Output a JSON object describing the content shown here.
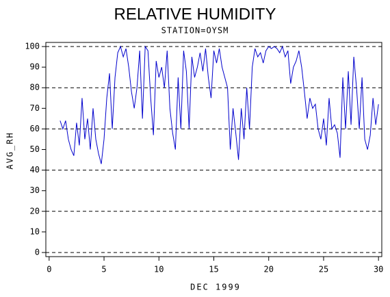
{
  "chart_data": {
    "type": "line",
    "title": "RELATIVE HUMIDITY",
    "subtitle": "STATION=OYSM",
    "x_label": "DEC 1999",
    "y_label": "AVG_RH",
    "xlim": [
      -0.3,
      30.3
    ],
    "xticks": [
      0,
      5,
      10,
      15,
      20,
      25,
      30
    ],
    "ylim": [
      -2,
      102
    ],
    "yticks": [
      0,
      10,
      20,
      30,
      40,
      50,
      60,
      70,
      80,
      90,
      100
    ],
    "ygrid": [
      0,
      20,
      40,
      60,
      80,
      100
    ],
    "grid_style": "dashed",
    "x": [
      1,
      1.25,
      1.5,
      1.75,
      2,
      2.25,
      2.5,
      2.75,
      3,
      3.25,
      3.5,
      3.75,
      4,
      4.25,
      4.5,
      4.75,
      5,
      5.25,
      5.5,
      5.75,
      6,
      6.25,
      6.5,
      6.75,
      7,
      7.25,
      7.5,
      7.75,
      8,
      8.25,
      8.5,
      8.75,
      9,
      9.25,
      9.5,
      9.75,
      10,
      10.25,
      10.5,
      10.75,
      11,
      11.25,
      11.5,
      11.75,
      12,
      12.25,
      12.5,
      12.75,
      13,
      13.25,
      13.5,
      13.75,
      14,
      14.25,
      14.5,
      14.75,
      15,
      15.25,
      15.5,
      15.75,
      16,
      16.25,
      16.5,
      16.75,
      17,
      17.25,
      17.5,
      17.75,
      18,
      18.25,
      18.5,
      18.75,
      19,
      19.25,
      19.5,
      19.75,
      20,
      20.25,
      20.5,
      20.75,
      21,
      21.25,
      21.5,
      21.75,
      22,
      22.25,
      22.5,
      22.75,
      23,
      23.25,
      23.5,
      23.75,
      24,
      24.25,
      24.5,
      24.75,
      25,
      25.25,
      25.5,
      25.75,
      26,
      26.25,
      26.5,
      26.75,
      27,
      27.25,
      27.5,
      27.75,
      28,
      28.25,
      28.5,
      28.75,
      29,
      29.25,
      29.5,
      29.75,
      30
    ],
    "series": [
      {
        "name": "AVG_RH",
        "color": "#0000cc",
        "values": [
          64,
          60,
          64,
          55,
          50,
          47,
          63,
          52,
          75,
          55,
          65,
          50,
          70,
          55,
          48,
          43,
          55,
          75,
          87,
          60,
          85,
          97,
          100,
          95,
          99,
          90,
          78,
          70,
          80,
          98,
          65,
          100,
          98,
          75,
          57,
          93,
          85,
          90,
          80,
          98,
          70,
          58,
          50,
          85,
          60,
          98,
          88,
          60,
          95,
          85,
          90,
          97,
          88,
          99,
          85,
          75,
          98,
          92,
          99,
          90,
          85,
          80,
          50,
          70,
          58,
          45,
          70,
          55,
          80,
          60,
          90,
          99,
          95,
          97,
          92,
          98,
          100,
          99,
          100,
          99,
          97,
          100,
          95,
          98,
          82,
          90,
          93,
          98,
          90,
          78,
          65,
          75,
          70,
          72,
          60,
          55,
          65,
          52,
          75,
          60,
          62,
          58,
          46,
          85,
          60,
          88,
          62,
          95,
          80,
          60,
          85,
          55,
          50,
          57,
          75,
          62,
          72
        ]
      }
    ]
  }
}
